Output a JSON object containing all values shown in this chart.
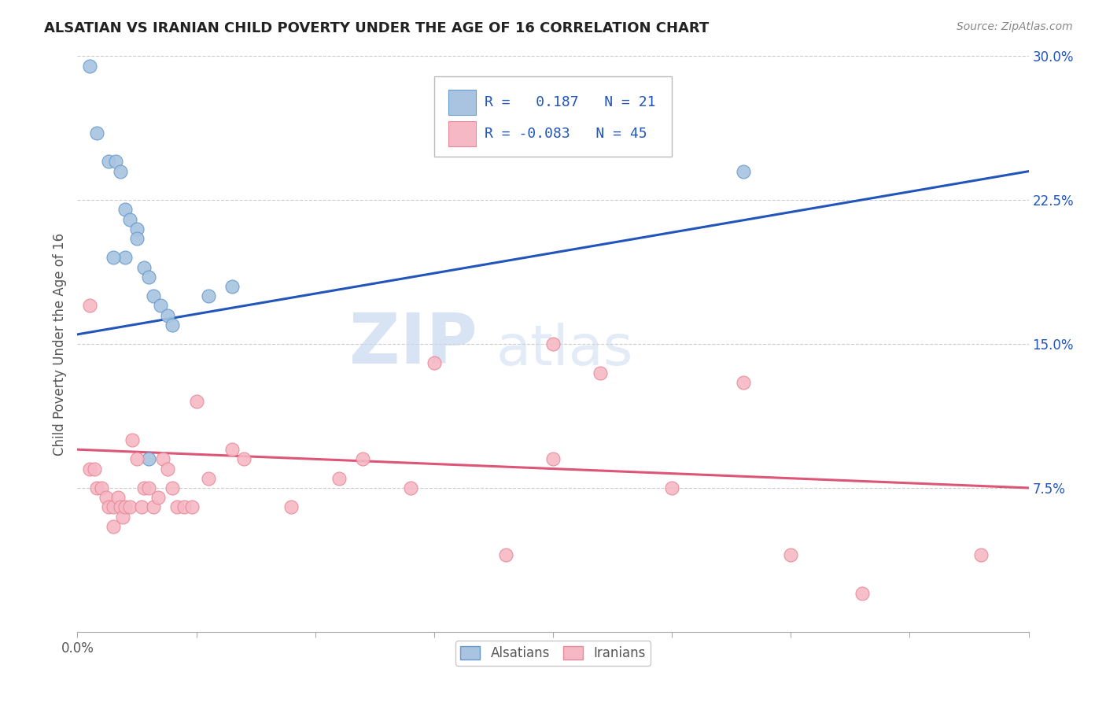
{
  "title": "ALSATIAN VS IRANIAN CHILD POVERTY UNDER THE AGE OF 16 CORRELATION CHART",
  "source": "Source: ZipAtlas.com",
  "ylabel": "Child Poverty Under the Age of 16",
  "xlim": [
    0.0,
    0.4
  ],
  "ylim": [
    0.0,
    0.3
  ],
  "xtick_positions": [
    0.0,
    0.05,
    0.1,
    0.15,
    0.2,
    0.25,
    0.3,
    0.35,
    0.4
  ],
  "xtick_labels_show": {
    "0.0": "0.0%"
  },
  "yticks_right": [
    0.075,
    0.15,
    0.225,
    0.3
  ],
  "yticklabels_right": [
    "7.5%",
    "15.0%",
    "22.5%",
    "30.0%"
  ],
  "alsatian_color": "#a8c4e0",
  "alsatian_edge": "#6699cc",
  "iranian_color": "#f5b8c4",
  "iranian_edge": "#e88898",
  "alsatian_line_color": "#2255bb",
  "iranian_line_color": "#dd5577",
  "R_alsatian": 0.187,
  "N_alsatian": 21,
  "R_iranian": -0.083,
  "N_iranian": 45,
  "alsatian_x": [
    0.005,
    0.008,
    0.013,
    0.016,
    0.018,
    0.02,
    0.022,
    0.025,
    0.025,
    0.028,
    0.03,
    0.032,
    0.035,
    0.038,
    0.04,
    0.055,
    0.065,
    0.28,
    0.02,
    0.015,
    0.03
  ],
  "alsatian_y": [
    0.295,
    0.26,
    0.245,
    0.245,
    0.24,
    0.22,
    0.215,
    0.21,
    0.205,
    0.19,
    0.185,
    0.175,
    0.17,
    0.165,
    0.16,
    0.175,
    0.18,
    0.24,
    0.195,
    0.195,
    0.09
  ],
  "iranian_x": [
    0.005,
    0.005,
    0.007,
    0.008,
    0.01,
    0.012,
    0.013,
    0.015,
    0.015,
    0.017,
    0.018,
    0.019,
    0.02,
    0.022,
    0.023,
    0.025,
    0.027,
    0.028,
    0.03,
    0.032,
    0.034,
    0.036,
    0.038,
    0.04,
    0.042,
    0.045,
    0.048,
    0.05,
    0.055,
    0.065,
    0.07,
    0.09,
    0.11,
    0.12,
    0.14,
    0.15,
    0.18,
    0.2,
    0.22,
    0.28,
    0.3,
    0.33,
    0.38,
    0.2,
    0.25
  ],
  "iranian_y": [
    0.17,
    0.085,
    0.085,
    0.075,
    0.075,
    0.07,
    0.065,
    0.065,
    0.055,
    0.07,
    0.065,
    0.06,
    0.065,
    0.065,
    0.1,
    0.09,
    0.065,
    0.075,
    0.075,
    0.065,
    0.07,
    0.09,
    0.085,
    0.075,
    0.065,
    0.065,
    0.065,
    0.12,
    0.08,
    0.095,
    0.09,
    0.065,
    0.08,
    0.09,
    0.075,
    0.14,
    0.04,
    0.15,
    0.135,
    0.13,
    0.04,
    0.02,
    0.04,
    0.09,
    0.075
  ],
  "watermark_zip": "ZIP",
  "watermark_atlas": "atlas",
  "background_color": "#ffffff",
  "grid_color": "#cccccc"
}
